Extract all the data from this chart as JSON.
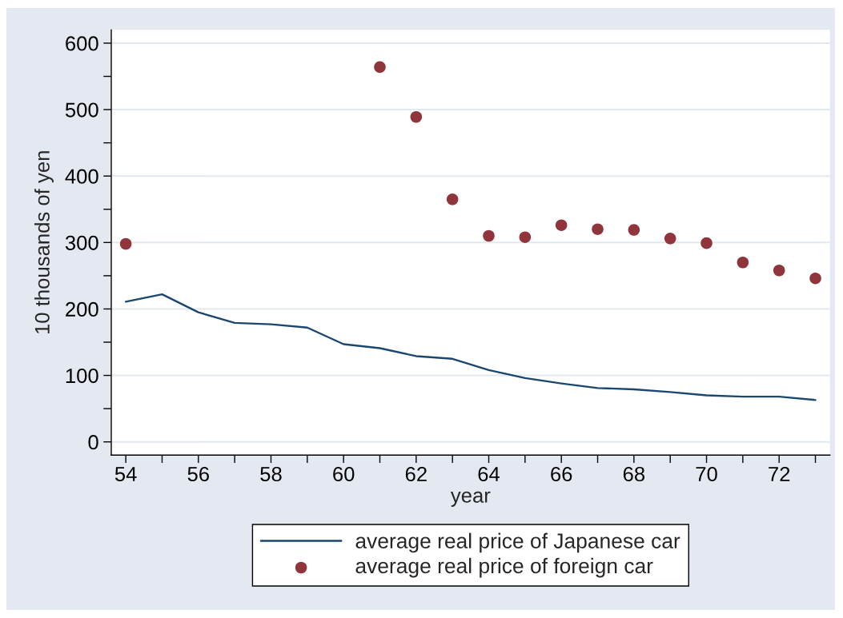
{
  "chart_data": {
    "type": "line",
    "xlabel": "year",
    "ylabel": "10 thousands of yen",
    "x": [
      54,
      55,
      56,
      57,
      58,
      59,
      60,
      61,
      62,
      63,
      64,
      65,
      66,
      67,
      68,
      69,
      70,
      71,
      72,
      73
    ],
    "series": [
      {
        "name": "average real price of Japanese car",
        "color": "#1a476f",
        "line_style": "solid",
        "values": [
          211,
          222,
          195,
          179,
          177,
          172,
          147,
          141,
          129,
          125,
          108,
          96,
          88,
          81,
          79,
          75,
          70,
          68,
          68,
          63
        ]
      },
      {
        "name": "average real price of foreign car",
        "type": "scatter",
        "color": "#90353b",
        "marker": "circle",
        "values": [
          298,
          564,
          489,
          365,
          310,
          308,
          326,
          320,
          319,
          306,
          299,
          270,
          258,
          246
        ],
        "x": [
          54,
          61,
          62,
          63,
          64,
          65,
          66,
          67,
          68,
          69,
          70,
          71,
          72,
          73
        ]
      }
    ],
    "xlim": [
      53.6,
      73.4
    ],
    "ylim": [
      -20,
      620
    ],
    "xticks": [
      54,
      {
        "value": 55,
        "label": null
      },
      56,
      {
        "value": 57,
        "label": null
      },
      58,
      {
        "value": 59,
        "label": null
      },
      60,
      {
        "value": 61,
        "label": null
      },
      62,
      {
        "value": 63,
        "label": null
      },
      64,
      {
        "value": 65,
        "label": null
      },
      66,
      {
        "value": 67,
        "label": null
      },
      68,
      {
        "value": 69,
        "label": null
      },
      70,
      {
        "value": 71,
        "label": null
      },
      72,
      {
        "value": 73,
        "label": null
      }
    ],
    "yticks": [
      0,
      {
        "value": 50,
        "label": null
      },
      100,
      {
        "value": 150,
        "label": null
      },
      200,
      {
        "value": 250,
        "label": null
      },
      300,
      {
        "value": 350,
        "label": null
      },
      400,
      {
        "value": 450,
        "label": null
      },
      500,
      {
        "value": 550,
        "label": null
      },
      600
    ],
    "grid": "y",
    "legend": "bottom"
  }
}
